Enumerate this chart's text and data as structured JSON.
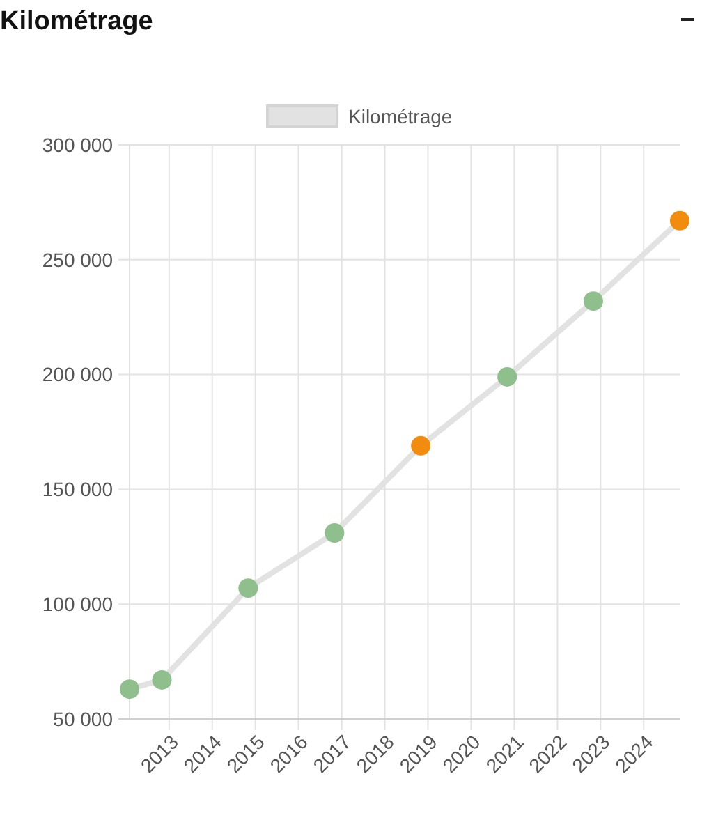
{
  "chart_data": {
    "type": "line",
    "title": "Kilométrage",
    "x": [
      "2012-02",
      "2012-11",
      "2014-11",
      "2016-11",
      "2018-11",
      "2020-11",
      "2022-11",
      "2024-11"
    ],
    "series": [
      {
        "name": "Kilométrage",
        "color": "#e2e2e2",
        "colors": [
          "#8fbf8c",
          "#8fbf8c",
          "#8fbf8c",
          "#8fbf8c",
          "#f28c0f",
          "#8fbf8c",
          "#8fbf8c",
          "#f28c0f"
        ],
        "values": [
          63000,
          67000,
          107000,
          131000,
          169000,
          199000,
          232000,
          267000
        ]
      }
    ],
    "xlim": [
      "2012-02",
      "2024-11"
    ],
    "xticks": [
      {
        "value": "2013",
        "label": "2013"
      },
      {
        "value": "2014",
        "label": "2014"
      },
      {
        "value": "2015",
        "label": "2015"
      },
      {
        "value": "2016",
        "label": "2016"
      },
      {
        "value": "2017",
        "label": "2017"
      },
      {
        "value": "2018",
        "label": "2018"
      },
      {
        "value": "2019",
        "label": "2019"
      },
      {
        "value": "2020",
        "label": "2020"
      },
      {
        "value": "2021",
        "label": "2021"
      },
      {
        "value": "2022",
        "label": "2022"
      },
      {
        "value": "2023",
        "label": "2023"
      },
      {
        "value": "2024",
        "label": "2024"
      }
    ],
    "ylim": [
      50000,
      300000
    ],
    "yticks": [
      {
        "value": 50000,
        "label": "50 000"
      },
      {
        "value": 100000,
        "label": "100 000"
      },
      {
        "value": 150000,
        "label": "150 000"
      },
      {
        "value": 200000,
        "label": "200 000"
      },
      {
        "value": 250000,
        "label": "250 000"
      },
      {
        "value": 300000,
        "label": "300 000"
      }
    ],
    "grid": true,
    "legend": "top",
    "marker": "circle",
    "line_style": "solid"
  }
}
